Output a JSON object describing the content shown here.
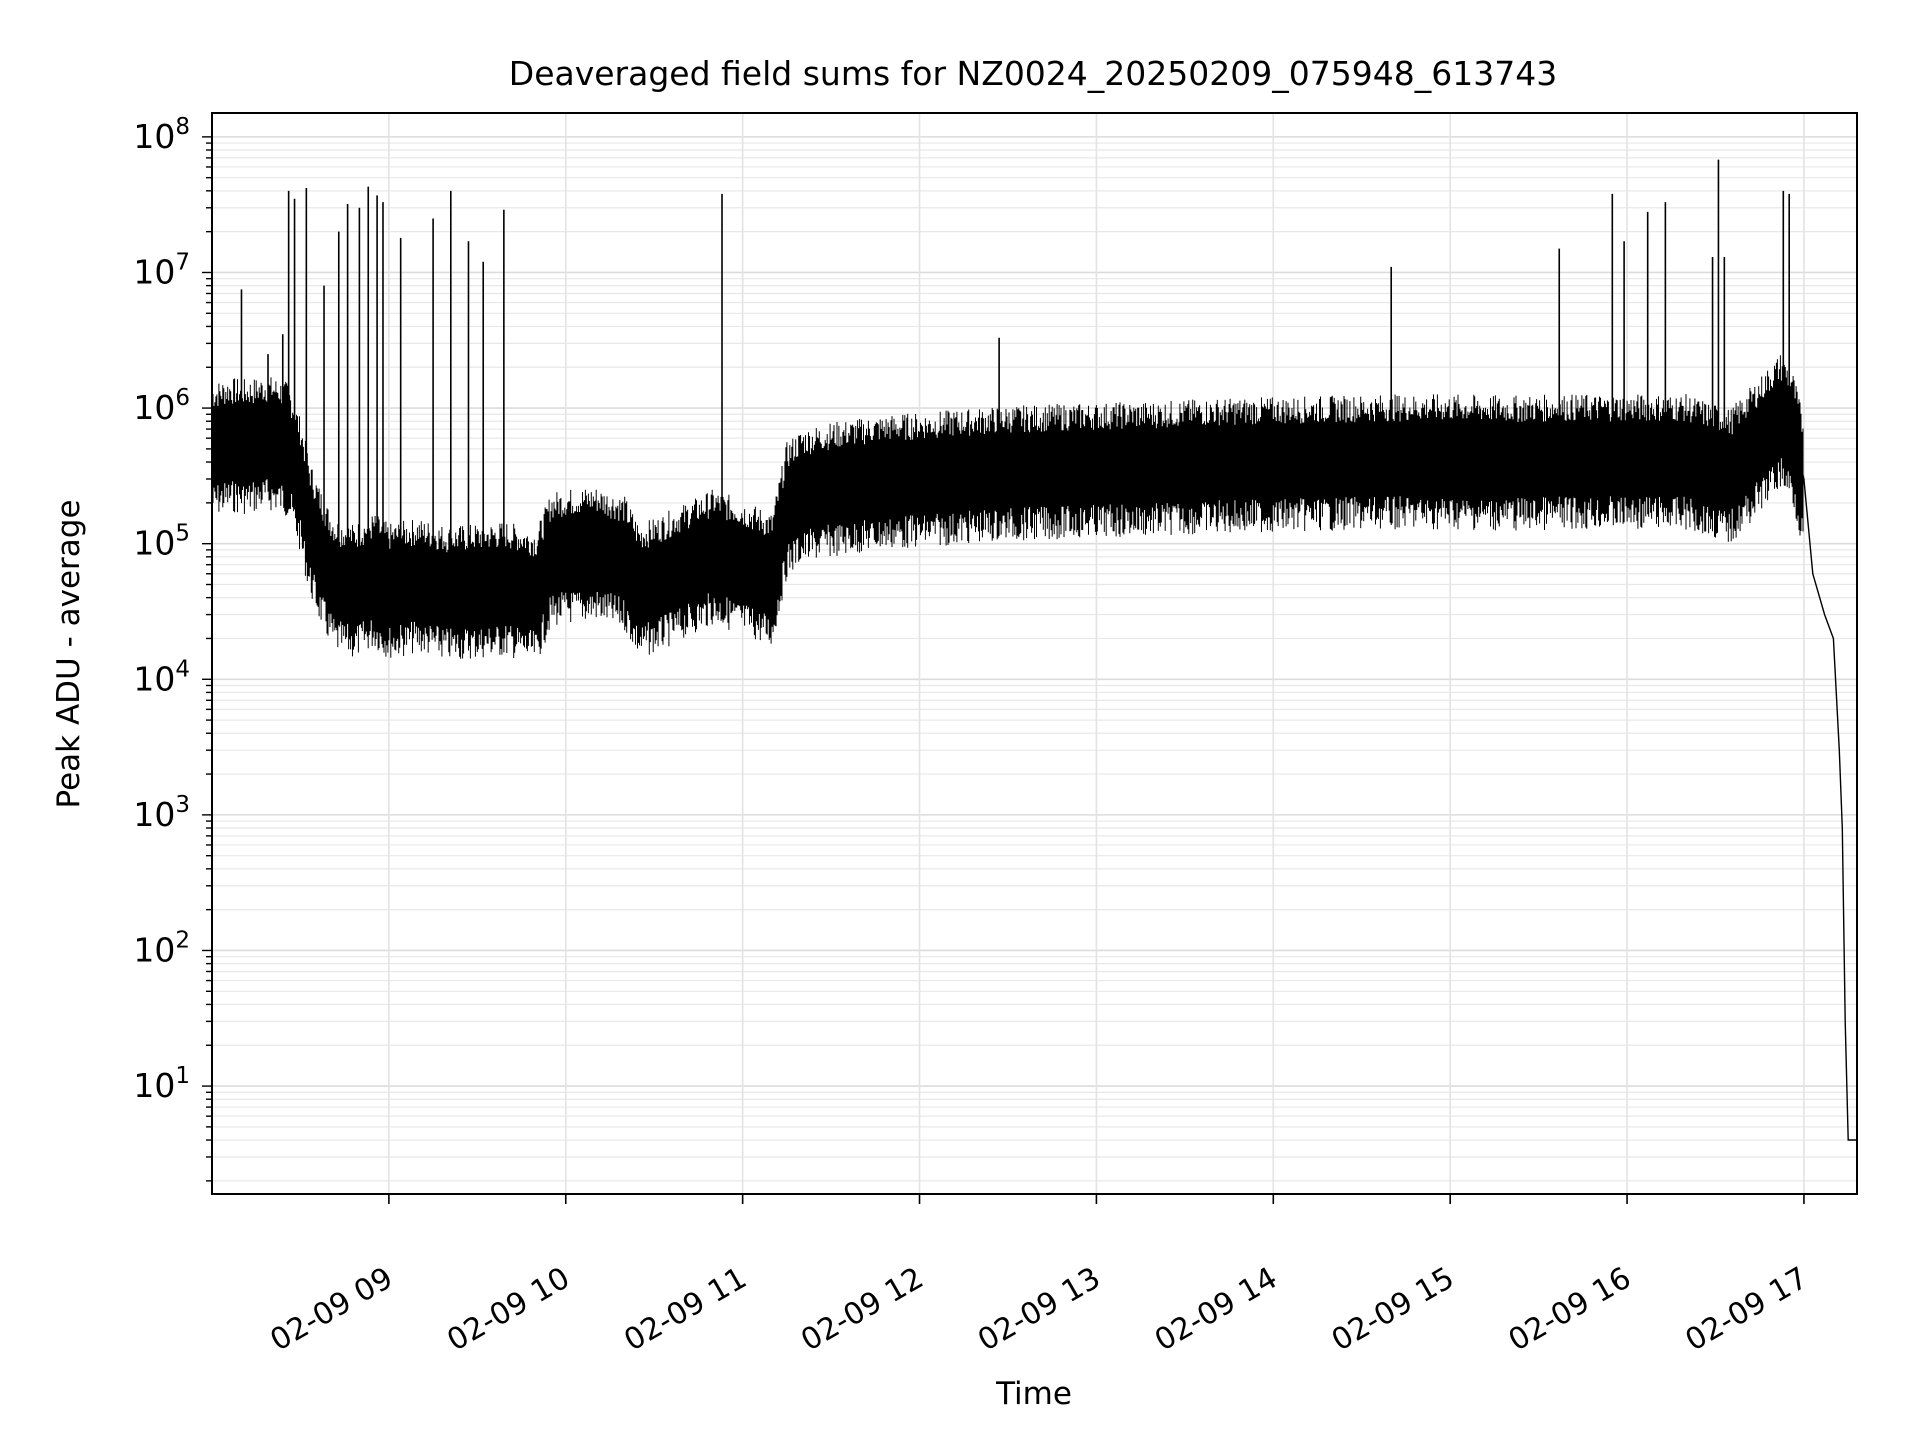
{
  "chart_data": {
    "type": "line",
    "title": "Deaveraged field sums for NZ0024_20250209_075948_613743",
    "xlabel": "Time",
    "ylabel": "Peak ADU - average",
    "yscale": "log",
    "ylim": [
      1.6,
      150000000
    ],
    "xlim": [
      "2025-02-09 08:00",
      "2025-02-09 17:18"
    ],
    "grid": "major and minor, light gray",
    "legend": "none",
    "x_ticks": [
      {
        "value": "2025-02-09 09:00",
        "label": "02-09 09"
      },
      {
        "value": "2025-02-09 10:00",
        "label": "02-09 10"
      },
      {
        "value": "2025-02-09 11:00",
        "label": "02-09 11"
      },
      {
        "value": "2025-02-09 12:00",
        "label": "02-09 12"
      },
      {
        "value": "2025-02-09 13:00",
        "label": "02-09 13"
      },
      {
        "value": "2025-02-09 14:00",
        "label": "02-09 14"
      },
      {
        "value": "2025-02-09 15:00",
        "label": "02-09 15"
      },
      {
        "value": "2025-02-09 16:00",
        "label": "02-09 16"
      },
      {
        "value": "2025-02-09 17:00",
        "label": "02-09 17"
      }
    ],
    "y_ticks": [
      {
        "value": 10,
        "base": "10",
        "exp": "1"
      },
      {
        "value": 100,
        "base": "10",
        "exp": "2"
      },
      {
        "value": 1000,
        "base": "10",
        "exp": "3"
      },
      {
        "value": 10000,
        "base": "10",
        "exp": "4"
      },
      {
        "value": 100000,
        "base": "10",
        "exp": "5"
      },
      {
        "value": 1000000,
        "base": "10",
        "exp": "6"
      },
      {
        "value": 10000000,
        "base": "10",
        "exp": "7"
      },
      {
        "value": 100000000,
        "base": "10",
        "exp": "8"
      }
    ],
    "series": [
      {
        "color": "#000000",
        "points": [
          [
            "2025-02-09 08:00",
            550000
          ],
          [
            "2025-02-09 08:06",
            600000
          ],
          [
            "2025-02-09 08:12",
            580000
          ],
          [
            "2025-02-09 08:18",
            620000
          ],
          [
            "2025-02-09 08:22",
            600000
          ],
          [
            "2025-02-09 08:26",
            550000
          ],
          [
            "2025-02-09 08:30",
            300000
          ],
          [
            "2025-02-09 08:33",
            150000
          ],
          [
            "2025-02-09 08:36",
            100000
          ],
          [
            "2025-02-09 08:39",
            70000
          ],
          [
            "2025-02-09 08:42",
            55000
          ],
          [
            "2025-02-09 08:48",
            50000
          ],
          [
            "2025-02-09 08:55",
            60000
          ],
          [
            "2025-02-09 09:00",
            50000
          ],
          [
            "2025-02-09 09:10",
            55000
          ],
          [
            "2025-02-09 09:20",
            48000
          ],
          [
            "2025-02-09 09:30",
            50000
          ],
          [
            "2025-02-09 09:40",
            52000
          ],
          [
            "2025-02-09 09:50",
            45000
          ],
          [
            "2025-02-09 09:55",
            85000
          ],
          [
            "2025-02-09 10:00",
            90000
          ],
          [
            "2025-02-09 10:10",
            95000
          ],
          [
            "2025-02-09 10:20",
            80000
          ],
          [
            "2025-02-09 10:25",
            50000
          ],
          [
            "2025-02-09 10:30",
            55000
          ],
          [
            "2025-02-09 10:40",
            70000
          ],
          [
            "2025-02-09 10:50",
            90000
          ],
          [
            "2025-02-09 11:00",
            75000
          ],
          [
            "2025-02-09 11:10",
            60000
          ],
          [
            "2025-02-09 11:15",
            200000
          ],
          [
            "2025-02-09 11:20",
            250000
          ],
          [
            "2025-02-09 11:30",
            280000
          ],
          [
            "2025-02-09 11:40",
            300000
          ],
          [
            "2025-02-09 11:50",
            320000
          ],
          [
            "2025-02-09 12:00",
            330000
          ],
          [
            "2025-02-09 12:15",
            350000
          ],
          [
            "2025-02-09 12:30",
            370000
          ],
          [
            "2025-02-09 12:45",
            380000
          ],
          [
            "2025-02-09 13:00",
            390000
          ],
          [
            "2025-02-09 13:20",
            400000
          ],
          [
            "2025-02-09 13:40",
            420000
          ],
          [
            "2025-02-09 14:00",
            430000
          ],
          [
            "2025-02-09 14:20",
            440000
          ],
          [
            "2025-02-09 14:40",
            450000
          ],
          [
            "2025-02-09 15:00",
            450000
          ],
          [
            "2025-02-09 15:20",
            440000
          ],
          [
            "2025-02-09 15:40",
            450000
          ],
          [
            "2025-02-09 16:00",
            450000
          ],
          [
            "2025-02-09 16:20",
            450000
          ],
          [
            "2025-02-09 16:35",
            350000
          ],
          [
            "2025-02-09 16:45",
            600000
          ],
          [
            "2025-02-09 16:52",
            900000
          ],
          [
            "2025-02-09 16:56",
            700000
          ],
          [
            "2025-02-09 17:00",
            300000
          ],
          [
            "2025-02-09 17:03",
            60000
          ],
          [
            "2025-02-09 17:07",
            30000
          ],
          [
            "2025-02-09 17:10",
            20000
          ],
          [
            "2025-02-09 17:12",
            3000
          ],
          [
            "2025-02-09 17:13",
            800
          ],
          [
            "2025-02-09 17:14",
            30
          ],
          [
            "2025-02-09 17:15",
            4
          ],
          [
            "2025-02-09 17:18",
            4
          ]
        ],
        "spikes": [
          [
            "2025-02-09 08:10",
            7500000
          ],
          [
            "2025-02-09 08:19",
            2500000
          ],
          [
            "2025-02-09 08:24",
            3500000
          ],
          [
            "2025-02-09 08:26",
            40000000
          ],
          [
            "2025-02-09 08:28",
            35000000
          ],
          [
            "2025-02-09 08:32",
            42000000
          ],
          [
            "2025-02-09 08:38",
            8000000
          ],
          [
            "2025-02-09 08:43",
            20000000
          ],
          [
            "2025-02-09 08:46",
            32000000
          ],
          [
            "2025-02-09 08:50",
            30000000
          ],
          [
            "2025-02-09 08:53",
            43000000
          ],
          [
            "2025-02-09 08:56",
            37000000
          ],
          [
            "2025-02-09 08:58",
            33000000
          ],
          [
            "2025-02-09 09:04",
            18000000
          ],
          [
            "2025-02-09 09:15",
            25000000
          ],
          [
            "2025-02-09 09:21",
            40000000
          ],
          [
            "2025-02-09 09:27",
            17000000
          ],
          [
            "2025-02-09 09:32",
            12000000
          ],
          [
            "2025-02-09 09:39",
            29000000
          ],
          [
            "2025-02-09 10:53",
            38000000
          ],
          [
            "2025-02-09 12:27",
            3300000
          ],
          [
            "2025-02-09 14:40",
            11000000
          ],
          [
            "2025-02-09 15:37",
            15000000
          ],
          [
            "2025-02-09 15:55",
            38000000
          ],
          [
            "2025-02-09 15:59",
            17000000
          ],
          [
            "2025-02-09 16:07",
            28000000
          ],
          [
            "2025-02-09 16:13",
            33000000
          ],
          [
            "2025-02-09 16:29",
            13000000
          ],
          [
            "2025-02-09 16:31",
            68000000
          ],
          [
            "2025-02-09 16:33",
            13000000
          ],
          [
            "2025-02-09 16:53",
            40000000
          ],
          [
            "2025-02-09 16:55",
            38000000
          ]
        ]
      }
    ]
  }
}
